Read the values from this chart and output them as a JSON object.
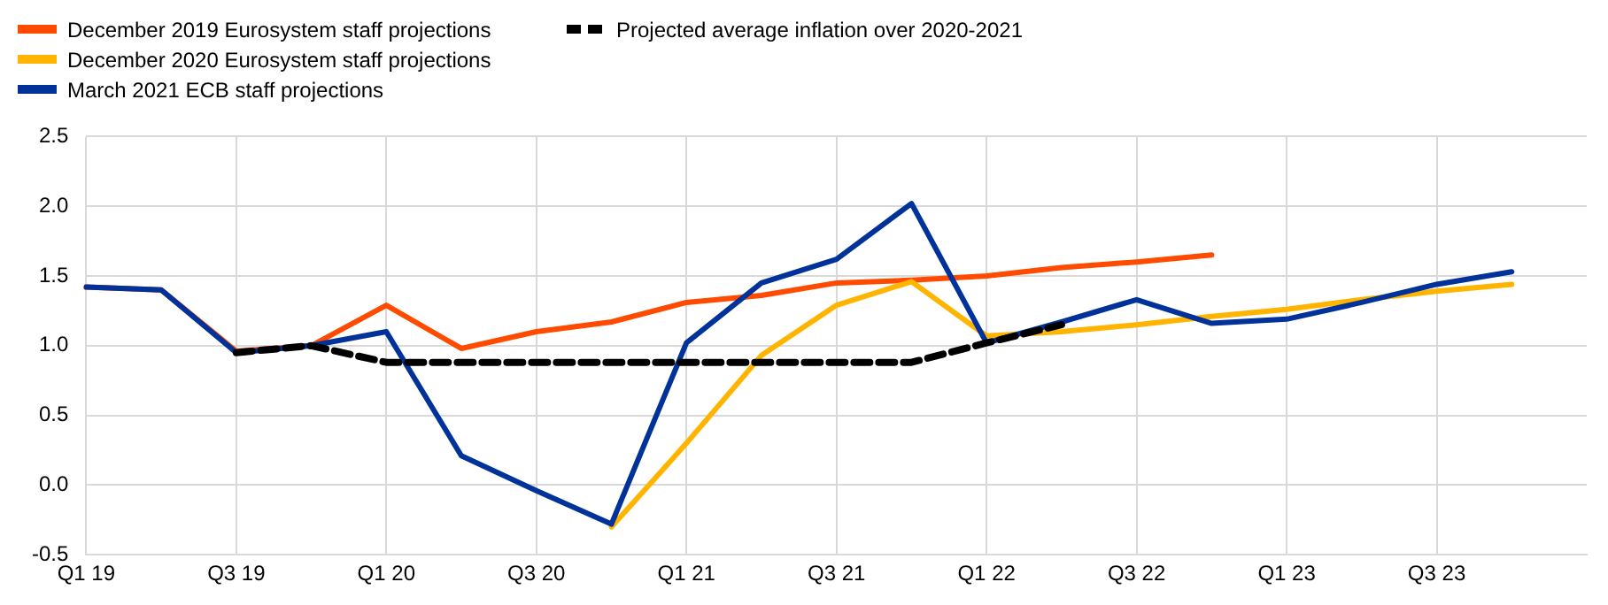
{
  "chart_data": {
    "type": "line",
    "categories": [
      "Q1 19",
      null,
      "Q3 19",
      null,
      "Q1 20",
      null,
      "Q3 20",
      null,
      "Q1 21",
      null,
      "Q3 21",
      null,
      "Q1 22",
      null,
      "Q3 22",
      null,
      "Q1 23",
      null,
      "Q3 23",
      null,
      null
    ],
    "series": [
      {
        "name": "December 2019 Eurosystem staff projections",
        "color": "#ff4b00",
        "values": [
          1.42,
          1.4,
          0.96,
          1.0,
          1.29,
          0.98,
          1.1,
          1.17,
          1.31,
          1.36,
          1.45,
          1.47,
          1.5,
          1.56,
          1.6,
          1.65,
          null,
          null,
          null,
          null,
          null
        ]
      },
      {
        "name": "December 2020 Eurosystem staff projections",
        "color": "#ffb400",
        "values": [
          null,
          null,
          null,
          null,
          null,
          null,
          null,
          -0.3,
          0.3,
          0.93,
          1.29,
          1.46,
          1.07,
          1.1,
          1.15,
          1.21,
          1.26,
          1.33,
          1.39,
          1.44,
          null
        ]
      },
      {
        "name": "March 2021 ECB staff projections",
        "color": "#003299",
        "values": [
          1.42,
          1.4,
          0.95,
          1.0,
          1.1,
          0.21,
          -0.04,
          -0.28,
          1.02,
          1.45,
          1.62,
          2.02,
          1.02,
          1.17,
          1.33,
          1.16,
          1.19,
          1.31,
          1.44,
          1.53,
          null
        ]
      },
      {
        "name": "Projected average inflation over 2020-2021",
        "color": "#000000",
        "line_style": "dashed",
        "values": [
          null,
          null,
          0.95,
          1.0,
          0.88,
          0.88,
          0.88,
          0.88,
          0.88,
          0.88,
          0.88,
          0.88,
          1.02,
          1.15,
          null,
          null,
          null,
          null,
          null,
          null,
          null
        ]
      }
    ],
    "ylim": [
      -0.5,
      2.5
    ],
    "yticks": [
      -0.5,
      {
        "value": 0,
        "label": "0.0"
      },
      0.5,
      {
        "value": 1,
        "label": "1.0"
      },
      1.5,
      {
        "value": 2,
        "label": "2.0"
      },
      2.5
    ],
    "grid": true,
    "legend": "top left",
    "marker": "none",
    "line_style": "solid"
  }
}
